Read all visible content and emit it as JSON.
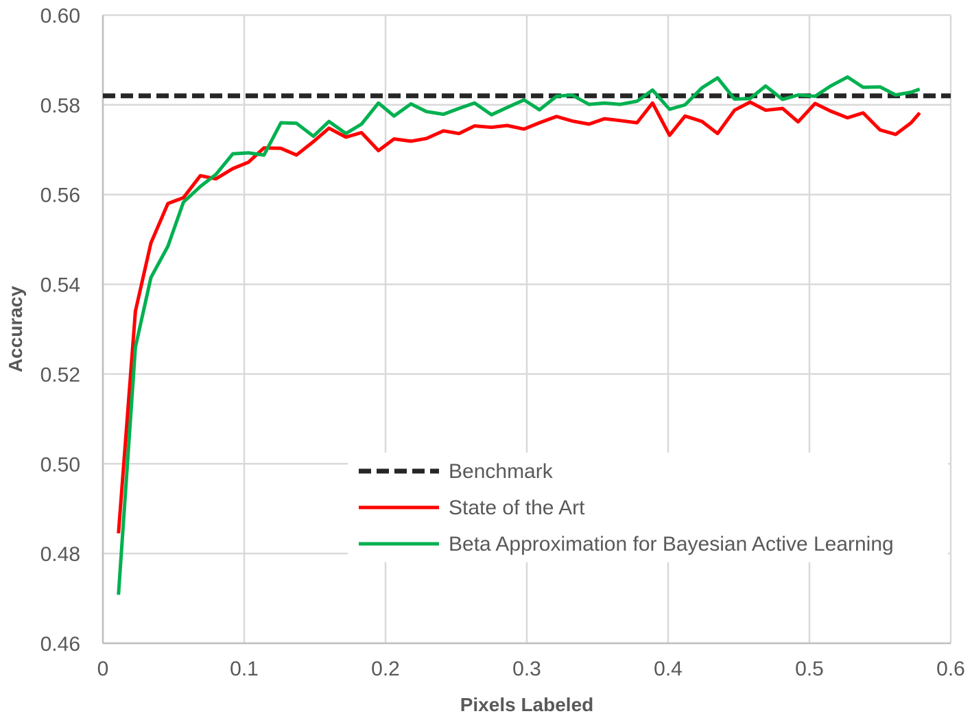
{
  "chart_data": {
    "type": "line",
    "xlabel": "Pixels Labeled",
    "ylabel": "Accuracy",
    "xlim": [
      0,
      0.6
    ],
    "ylim": [
      0.46,
      0.6
    ],
    "x_ticks": [
      "0",
      "0.1",
      "0.2",
      "0.3",
      "0.4",
      "0.5",
      "0.6"
    ],
    "y_ticks": [
      "0.46",
      "0.48",
      "0.50",
      "0.52",
      "0.54",
      "0.56",
      "0.58",
      "0.60"
    ],
    "grid": true,
    "legend_position": "lower-right",
    "x": [
      0.011,
      0.023,
      0.034,
      0.046,
      0.057,
      0.069,
      0.08,
      0.092,
      0.103,
      0.114,
      0.126,
      0.137,
      0.149,
      0.16,
      0.172,
      0.183,
      0.195,
      0.206,
      0.218,
      0.229,
      0.241,
      0.252,
      0.263,
      0.275,
      0.286,
      0.298,
      0.309,
      0.321,
      0.332,
      0.344,
      0.355,
      0.366,
      0.378,
      0.389,
      0.401,
      0.412,
      0.424,
      0.435,
      0.447,
      0.458,
      0.469,
      0.481,
      0.492,
      0.504,
      0.515,
      0.527,
      0.538,
      0.55,
      0.561,
      0.572,
      0.578
    ],
    "series": [
      {
        "name": "Benchmark",
        "color": "#262626",
        "style": "dashed",
        "constant": 0.582
      },
      {
        "name": "State of the Art",
        "color": "#ff0000",
        "style": "solid",
        "values": [
          0.4845,
          0.534,
          0.5492,
          0.558,
          0.5593,
          0.5642,
          0.5635,
          0.5658,
          0.5672,
          0.5704,
          0.5703,
          0.5688,
          0.5718,
          0.5748,
          0.5728,
          0.5738,
          0.5698,
          0.5724,
          0.5719,
          0.5725,
          0.5742,
          0.5736,
          0.5753,
          0.575,
          0.5754,
          0.5746,
          0.576,
          0.5774,
          0.5764,
          0.5757,
          0.5769,
          0.5765,
          0.576,
          0.5804,
          0.5732,
          0.5775,
          0.5763,
          0.5736,
          0.5788,
          0.5806,
          0.5788,
          0.5792,
          0.5762,
          0.5803,
          0.5786,
          0.5771,
          0.5782,
          0.5744,
          0.5734,
          0.576,
          0.5782
        ]
      },
      {
        "name": "Beta Approximation for Bayesian Active Learning",
        "color": "#00b050",
        "style": "solid",
        "values": [
          0.4708,
          0.526,
          0.5415,
          0.5485,
          0.5583,
          0.5618,
          0.5645,
          0.5691,
          0.5693,
          0.5688,
          0.576,
          0.5759,
          0.573,
          0.5763,
          0.5736,
          0.5757,
          0.5804,
          0.5775,
          0.5802,
          0.5785,
          0.5779,
          0.5792,
          0.5804,
          0.5778,
          0.5794,
          0.5811,
          0.5789,
          0.5819,
          0.5822,
          0.5801,
          0.5804,
          0.5801,
          0.5808,
          0.5833,
          0.579,
          0.58,
          0.5838,
          0.586,
          0.5813,
          0.5814,
          0.5842,
          0.5812,
          0.5822,
          0.5819,
          0.5842,
          0.5862,
          0.5839,
          0.584,
          0.5822,
          0.5828,
          0.5835
        ]
      }
    ]
  }
}
